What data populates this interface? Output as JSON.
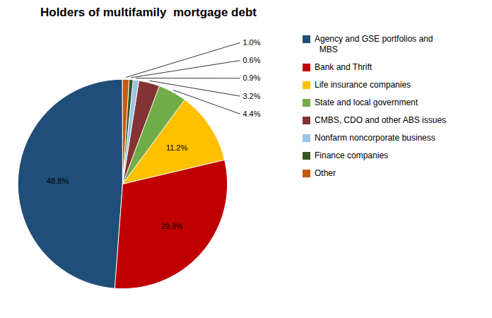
{
  "chart_data": {
    "type": "pie",
    "title": "Holders of multifamily  mortgage debt",
    "categories": [
      "Agency and GSE portfolios and\n  MBS",
      "Bank and Thrift",
      "Life insurance companies",
      "State and local government",
      "CMBS, CDO and other ABS issues",
      "Nonfarm noncorporate business",
      "Finance companies",
      "Other"
    ],
    "values": [
      48.8,
      29.9,
      11.2,
      4.4,
      3.2,
      0.9,
      0.6,
      1.0
    ],
    "value_labels": [
      "48.8%",
      "29.9%",
      "11.2%",
      "4.4%",
      "3.2%",
      "0.9%",
      "0.6%",
      "1.0%"
    ],
    "colors": [
      "#1F4E79",
      "#C00000",
      "#FFC000",
      "#70AD47",
      "#833333",
      "#9DC3E6",
      "#375623",
      "#C55A11"
    ],
    "data_labels": true,
    "legend": "right"
  }
}
